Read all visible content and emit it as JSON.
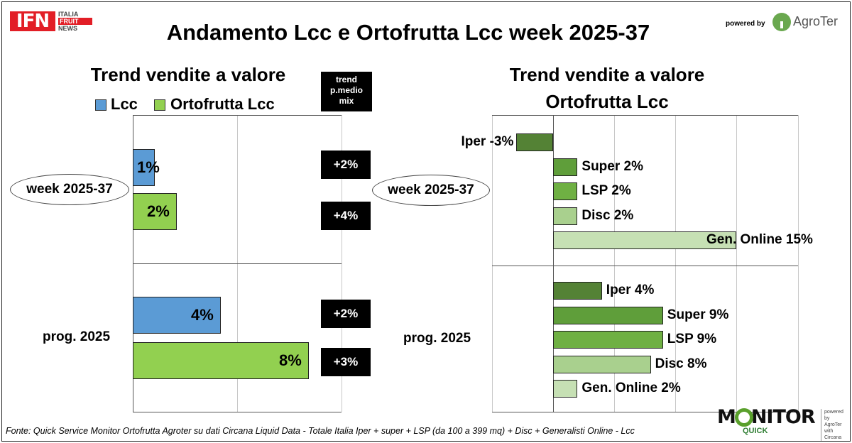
{
  "header": {
    "logo_main": "IFN",
    "logo_lines": [
      "ITALIA",
      "FRUIT",
      "NEWS"
    ],
    "title": "Andamento Lcc e Ortofrutta Lcc week 2025-37",
    "powered_by": "powered by",
    "partner": "AgroTer"
  },
  "left_panel": {
    "title": "Trend vendite a valore",
    "trend_header": [
      "trend",
      "p.medio",
      "mix"
    ]
  },
  "right_panel": {
    "title_line1": "Trend vendite a valore",
    "title_line2": "Ortofrutta Lcc"
  },
  "footer": {
    "source": "Fonte: Quick Service Monitor Ortofrutta Agroter su dati Circana Liquid Data - Totale Italia Iper + super + LSP (da 100 a 399 mq) + Disc + Generalisti Online - Lcc",
    "monitor_word": "MONITOR",
    "monitor_sub": "QUICK",
    "monitor_side": [
      "powered by",
      "AgroTer",
      "with",
      "Circana"
    ]
  },
  "colors": {
    "lcc": "#5b9bd5",
    "ortofrutta": "#92d050",
    "iper": "#548235",
    "super": "#5f9e3a",
    "lsp": "#6fb043",
    "disc": "#a9d08e",
    "online": "#c6e0b4"
  },
  "chart_data": [
    {
      "type": "bar",
      "orientation": "horizontal",
      "title": "Trend vendite a valore",
      "categories": [
        "week 2025-37",
        "prog. 2025"
      ],
      "series": [
        {
          "name": "Lcc",
          "values": [
            1,
            4
          ],
          "labels": [
            "1%",
            "4%"
          ]
        },
        {
          "name": "Ortofrutta Lcc",
          "values": [
            2,
            8
          ],
          "labels": [
            "2%",
            "8%"
          ]
        }
      ],
      "trend_pmedio_mix": {
        "header": "trend p.medio mix",
        "values": [
          [
            "+2%",
            "+4%"
          ],
          [
            "+2%",
            "+3%"
          ]
        ]
      },
      "xlim": [
        0,
        8
      ],
      "legend": "top"
    },
    {
      "type": "bar",
      "orientation": "horizontal",
      "title": "Trend vendite a valore Ortofrutta Lcc",
      "groups": [
        {
          "name": "week 2025-37",
          "items": [
            {
              "channel": "Iper",
              "value": -3,
              "label": "Iper -3%"
            },
            {
              "channel": "Super",
              "value": 2,
              "label": "Super 2%"
            },
            {
              "channel": "LSP",
              "value": 2,
              "label": "LSP 2%"
            },
            {
              "channel": "Disc",
              "value": 2,
              "label": "Disc 2%"
            },
            {
              "channel": "Gen. Online",
              "value": 15,
              "label": "Gen. Online 15%"
            }
          ]
        },
        {
          "name": "prog. 2025",
          "items": [
            {
              "channel": "Iper",
              "value": 4,
              "label": "Iper 4%"
            },
            {
              "channel": "Super",
              "value": 9,
              "label": "Super 9%"
            },
            {
              "channel": "LSP",
              "value": 9,
              "label": "LSP 9%"
            },
            {
              "channel": "Disc",
              "value": 8,
              "label": "Disc 8%"
            },
            {
              "channel": "Gen. Online",
              "value": 2,
              "label": "Gen. Online 2%"
            }
          ]
        }
      ],
      "xlim": [
        -5,
        20
      ]
    }
  ]
}
